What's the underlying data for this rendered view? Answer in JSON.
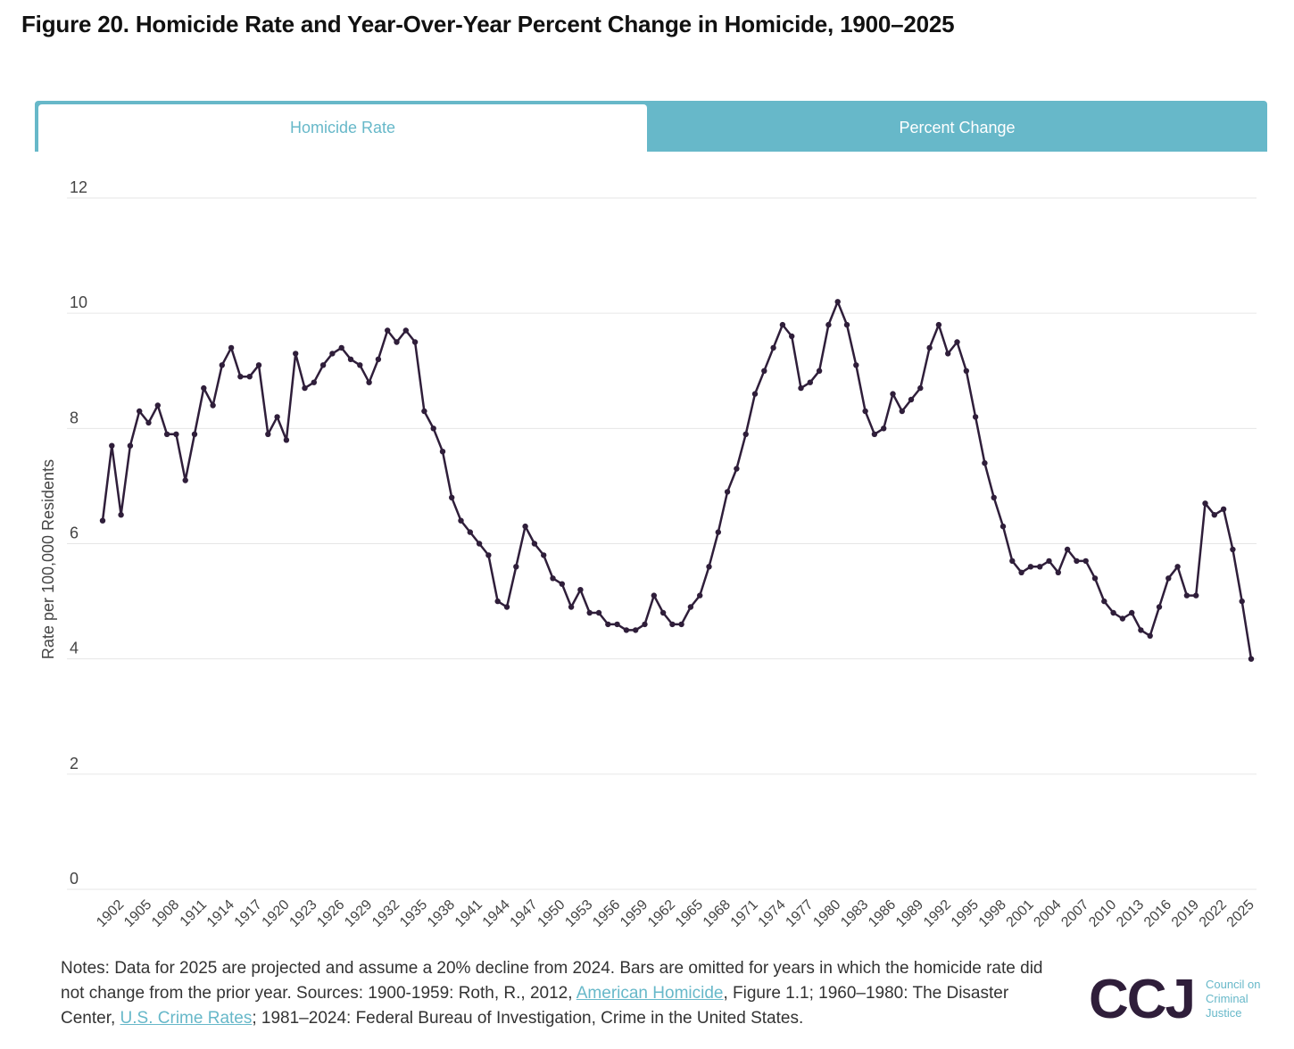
{
  "title": "Figure 20. Homicide Rate and Year-Over-Year Percent Change in Homicide, 1900–2025",
  "tabs": {
    "active": "Homicide Rate",
    "inactive": "Percent Change"
  },
  "colors": {
    "accent": "#67b8c9",
    "line": "#2f1e3a",
    "grid": "#e6e6e6"
  },
  "chart_data": {
    "type": "line",
    "title": "Homicide Rate",
    "xlabel": "",
    "ylabel": "Rate per 100,000 Residents",
    "ylim": [
      0,
      12
    ],
    "yticks": [
      0,
      2,
      4,
      6,
      8,
      10,
      12
    ],
    "xticks": [
      1902,
      1905,
      1908,
      1911,
      1914,
      1917,
      1920,
      1923,
      1926,
      1929,
      1932,
      1935,
      1938,
      1941,
      1944,
      1947,
      1950,
      1953,
      1956,
      1959,
      1962,
      1965,
      1968,
      1971,
      1974,
      1977,
      1980,
      1983,
      1986,
      1989,
      1992,
      1995,
      1998,
      2001,
      2004,
      2007,
      2010,
      2013,
      2016,
      2019,
      2022,
      2025
    ],
    "x": [
      1900,
      1901,
      1902,
      1903,
      1904,
      1905,
      1906,
      1907,
      1908,
      1909,
      1910,
      1911,
      1912,
      1913,
      1914,
      1915,
      1916,
      1917,
      1918,
      1919,
      1920,
      1921,
      1922,
      1923,
      1924,
      1925,
      1926,
      1927,
      1928,
      1929,
      1930,
      1931,
      1932,
      1933,
      1934,
      1935,
      1936,
      1937,
      1938,
      1939,
      1940,
      1941,
      1942,
      1943,
      1944,
      1945,
      1946,
      1947,
      1948,
      1949,
      1950,
      1951,
      1952,
      1953,
      1954,
      1955,
      1956,
      1957,
      1958,
      1959,
      1960,
      1961,
      1962,
      1963,
      1964,
      1965,
      1966,
      1967,
      1968,
      1969,
      1970,
      1971,
      1972,
      1973,
      1974,
      1975,
      1976,
      1977,
      1978,
      1979,
      1980,
      1981,
      1982,
      1983,
      1984,
      1985,
      1986,
      1987,
      1988,
      1989,
      1990,
      1991,
      1992,
      1993,
      1994,
      1995,
      1996,
      1997,
      1998,
      1999,
      2000,
      2001,
      2002,
      2003,
      2004,
      2005,
      2006,
      2007,
      2008,
      2009,
      2010,
      2011,
      2012,
      2013,
      2014,
      2015,
      2016,
      2017,
      2018,
      2019,
      2020,
      2021,
      2022,
      2023,
      2024,
      2025
    ],
    "series": [
      {
        "name": "Homicide Rate",
        "values": [
          6.4,
          7.7,
          6.5,
          7.7,
          8.3,
          8.1,
          8.4,
          7.9,
          7.9,
          7.1,
          7.9,
          8.7,
          8.4,
          9.1,
          9.4,
          8.9,
          8.9,
          9.1,
          7.9,
          8.2,
          7.8,
          9.3,
          8.7,
          8.8,
          9.1,
          9.3,
          9.4,
          9.2,
          9.1,
          8.8,
          9.2,
          9.7,
          9.5,
          9.7,
          9.5,
          8.3,
          8.0,
          7.6,
          6.8,
          6.4,
          6.2,
          6.0,
          5.8,
          5.0,
          4.9,
          5.6,
          6.3,
          6.0,
          5.8,
          5.4,
          5.3,
          4.9,
          5.2,
          4.8,
          4.8,
          4.6,
          4.6,
          4.5,
          4.5,
          4.6,
          5.1,
          4.8,
          4.6,
          4.6,
          4.9,
          5.1,
          5.6,
          6.2,
          6.9,
          7.3,
          7.9,
          8.6,
          9.0,
          9.4,
          9.8,
          9.6,
          8.7,
          8.8,
          9.0,
          9.8,
          10.2,
          9.8,
          9.1,
          8.3,
          7.9,
          8.0,
          8.6,
          8.3,
          8.5,
          8.7,
          9.4,
          9.8,
          9.3,
          9.5,
          9.0,
          8.2,
          7.4,
          6.8,
          6.3,
          5.7,
          5.5,
          5.6,
          5.6,
          5.7,
          5.5,
          5.9,
          5.7,
          5.7,
          5.4,
          5.0,
          4.8,
          4.7,
          4.8,
          4.5,
          4.4,
          4.9,
          5.4,
          5.6,
          5.1,
          5.1,
          6.7,
          6.5,
          6.6,
          5.9,
          5.0,
          4.0
        ]
      }
    ]
  },
  "notes": {
    "p1": "Notes: Data for 2025 are projected and assume a 20% decline from 2024. Bars are omitted for years in which the homicide rate did not change from the prior year. Sources: 1900-1959: Roth, R., 2012, ",
    "link1": "American Homicide",
    "p2": ", Figure 1.1; 1960–1980: The Disaster Center, ",
    "link2": "U.S. Crime Rates",
    "p3": "; 1981–2024: Federal Bureau of Investigation, Crime in the United States."
  },
  "logo": {
    "mark": "CCJ",
    "line1": "Council on",
    "line2": "Criminal",
    "line3": "Justice"
  }
}
